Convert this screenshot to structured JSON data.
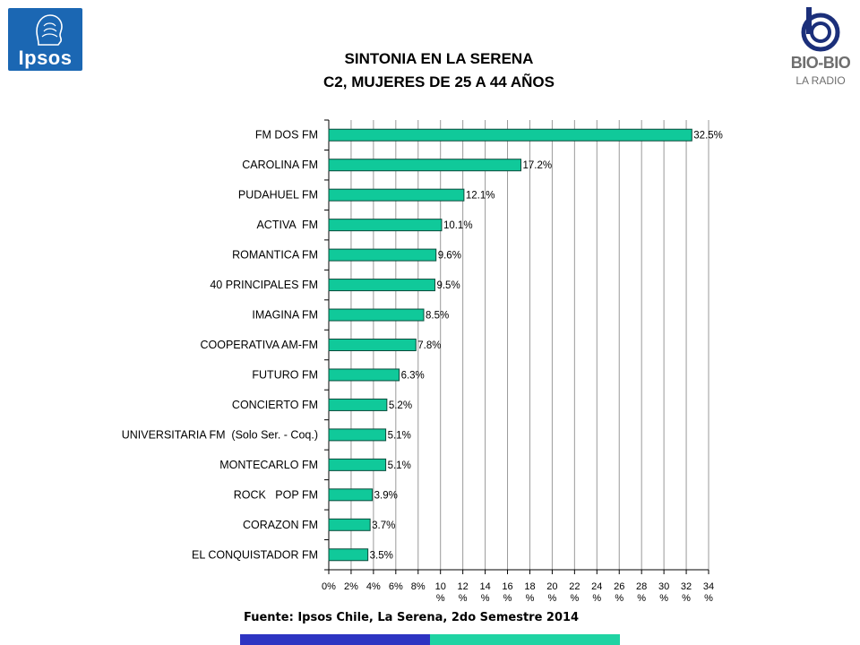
{
  "logos": {
    "ipsos": "Ipsos",
    "biobio_brand": "BIO-BIO",
    "biobio_sub": "LA RADIO"
  },
  "colors": {
    "bar_fill": "#10c99a",
    "bar_stroke": "#0a4a3a",
    "ipsos_blue": "#1b67b3",
    "footer_blue": "#2d34c2",
    "footer_teal": "#1fd3a3"
  },
  "chart_data": {
    "type": "bar",
    "orientation": "horizontal",
    "title": "SINTONIA EN LA SERENA",
    "subtitle": "C2, MUJERES DE 25 A 44 AÑOS",
    "categories": [
      "FM DOS FM",
      "CAROLINA FM",
      "PUDAHUEL FM",
      "ACTIVA  FM",
      "ROMANTICA FM",
      "40 PRINCIPALES FM",
      "IMAGINA FM",
      "COOPERATIVA AM-FM",
      "FUTURO FM",
      "CONCIERTO FM",
      "UNIVERSITARIA FM  (Solo Ser. - Coq.)",
      "MONTECARLO FM",
      "ROCK   POP FM",
      "CORAZON FM",
      "EL CONQUISTADOR FM"
    ],
    "values": [
      32.5,
      17.2,
      12.1,
      10.1,
      9.6,
      9.5,
      8.5,
      7.8,
      6.3,
      5.2,
      5.1,
      5.1,
      3.9,
      3.7,
      3.5
    ],
    "data_labels": [
      "32.5%",
      "17.2%",
      "12.1%",
      "10.1%",
      "9.6%",
      "9.5%",
      "8.5%",
      "7.8%",
      "6.3%",
      "5.2%",
      "5.1%",
      "5.1%",
      "3.9%",
      "3.7%",
      "3.5%"
    ],
    "xlim": [
      0,
      34
    ],
    "x_ticks": [
      0,
      2,
      4,
      6,
      8,
      10,
      12,
      14,
      16,
      18,
      20,
      22,
      24,
      26,
      28,
      30,
      32,
      34
    ],
    "x_tick_labels": [
      [
        "0%"
      ],
      [
        "2%"
      ],
      [
        "4%"
      ],
      [
        "6%"
      ],
      [
        "8%"
      ],
      [
        "10",
        "%"
      ],
      [
        "12",
        "%"
      ],
      [
        "14",
        "%"
      ],
      [
        "16",
        "%"
      ],
      [
        "18",
        "%"
      ],
      [
        "20",
        "%"
      ],
      [
        "22",
        "%"
      ],
      [
        "24",
        "%"
      ],
      [
        "26",
        "%"
      ],
      [
        "28",
        "%"
      ],
      [
        "30",
        "%"
      ],
      [
        "32",
        "%"
      ],
      [
        "34",
        "%"
      ]
    ],
    "grid": "vertical",
    "legend": "none"
  },
  "source": "Fuente: Ipsos Chile, La Serena, 2do Semestre 2014"
}
